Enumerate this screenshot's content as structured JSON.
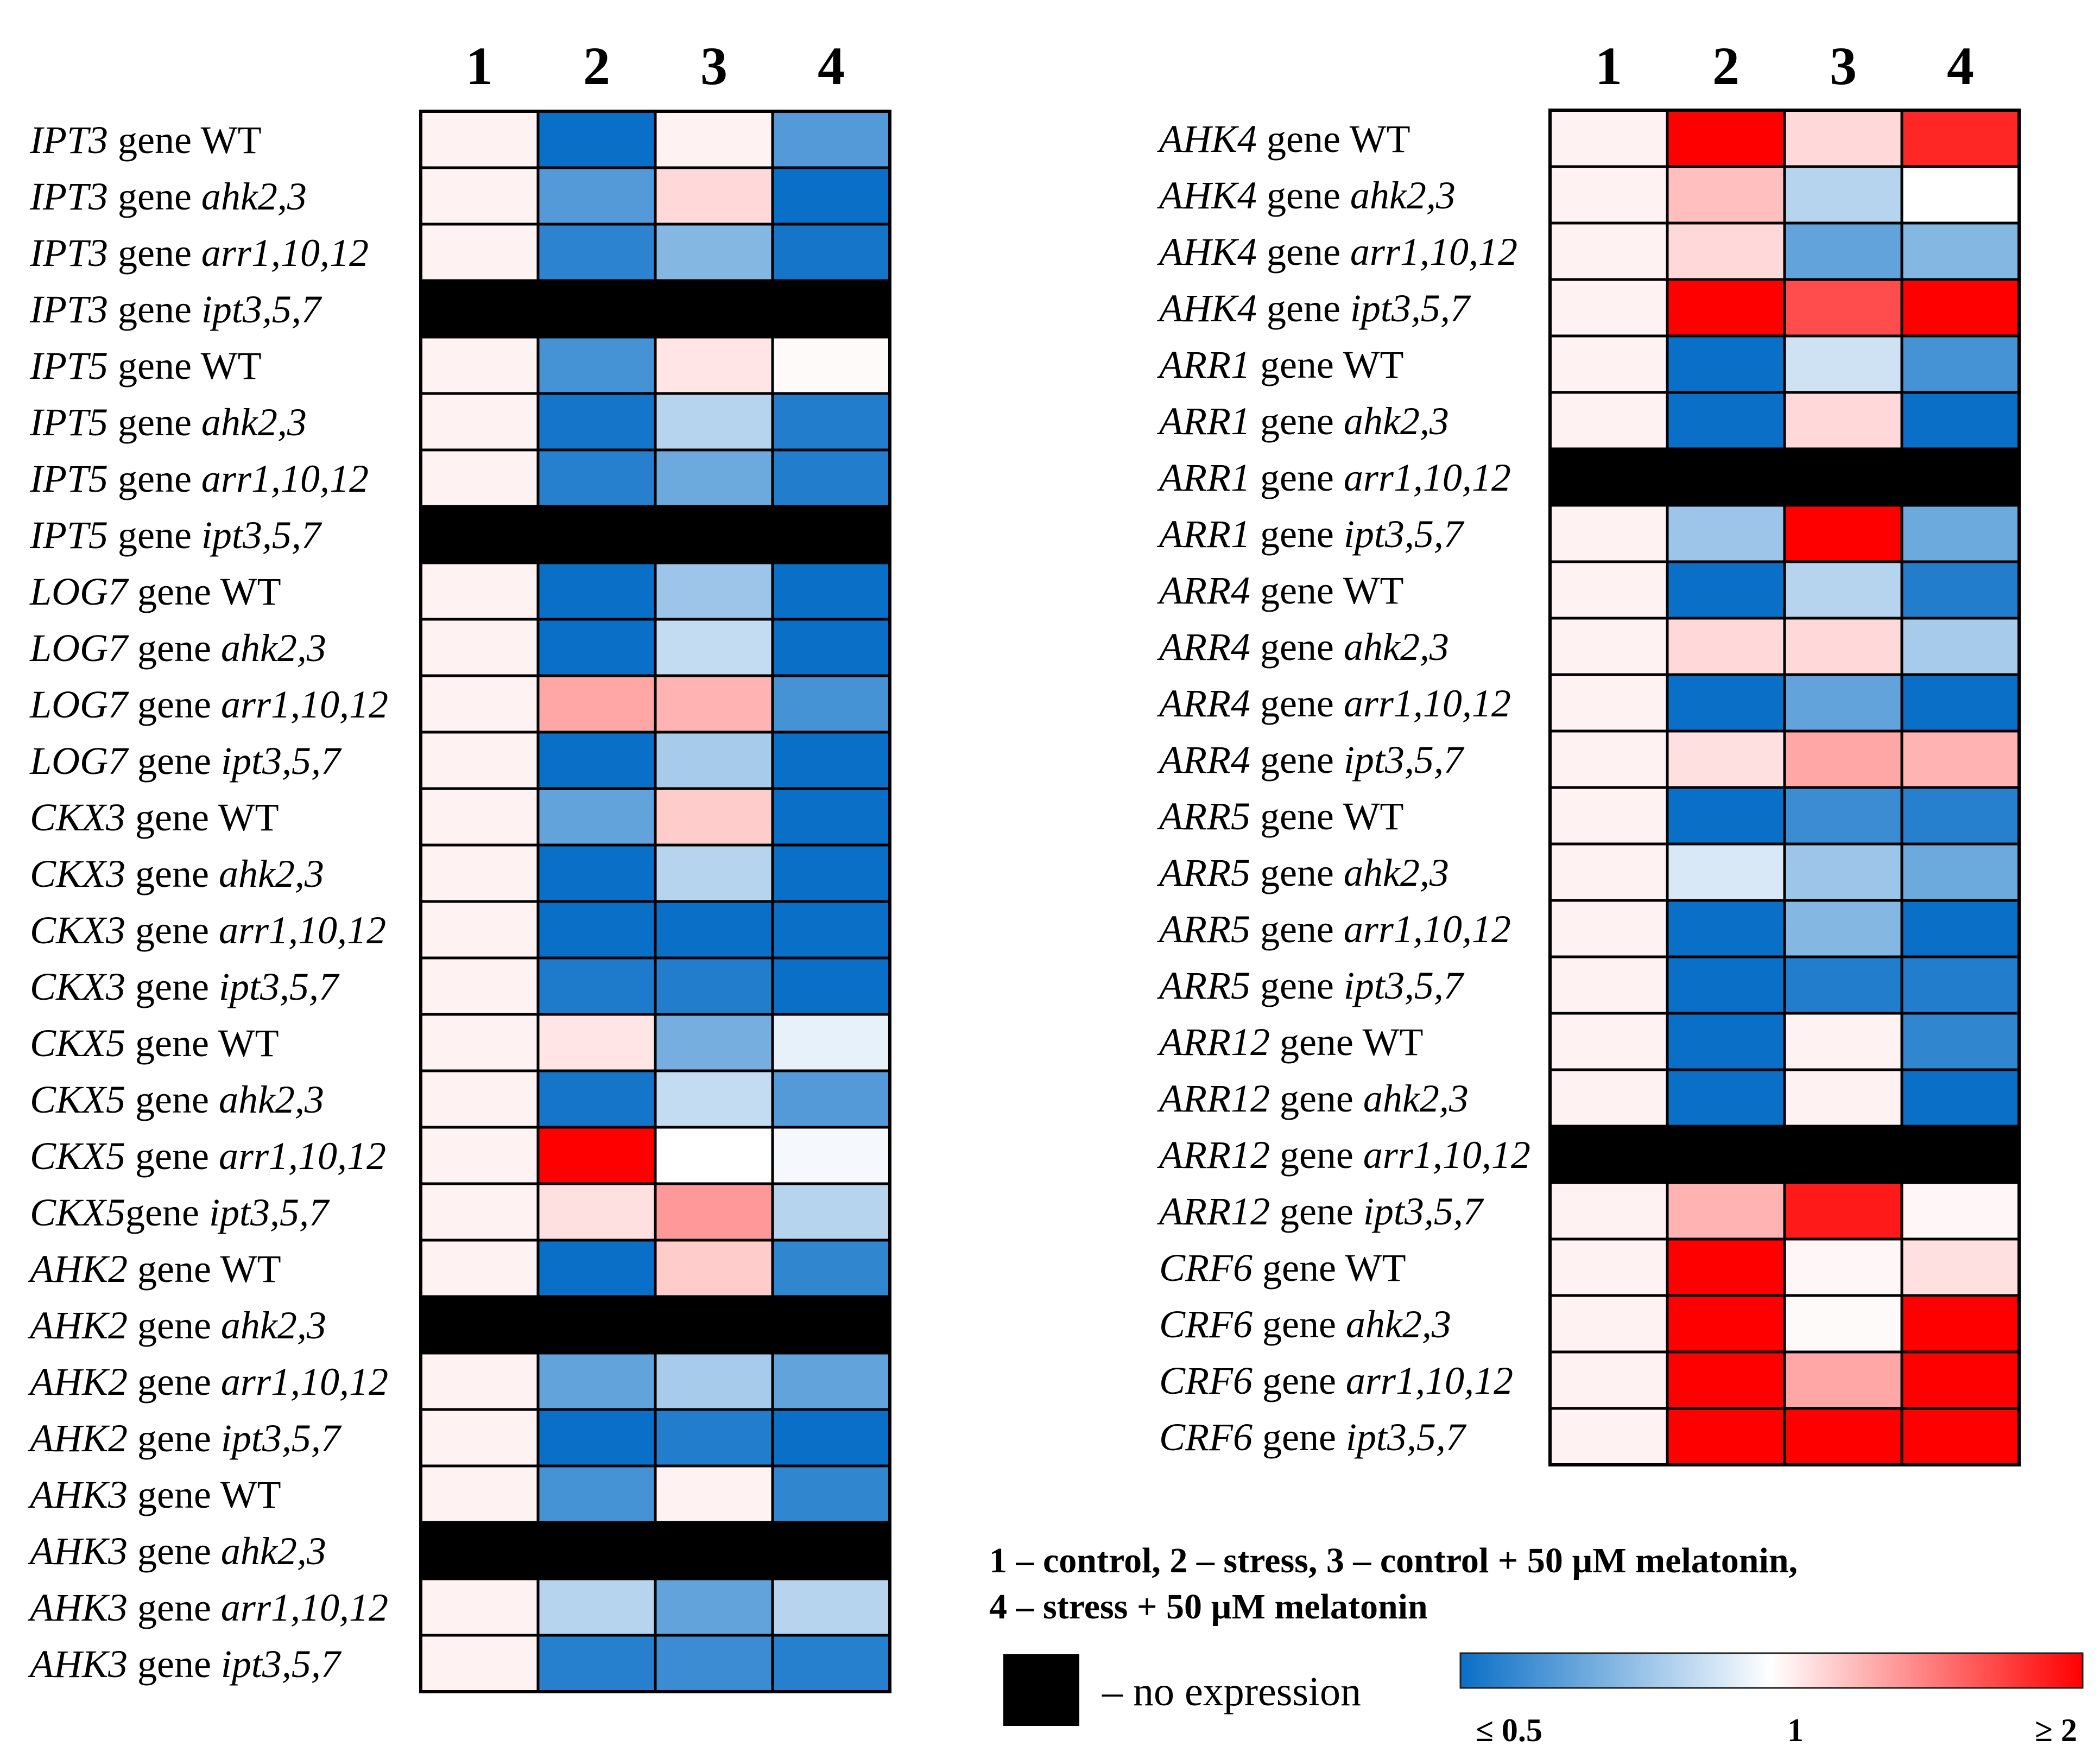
{
  "chart_data": {
    "type": "heatmap",
    "columns": [
      "1",
      "2",
      "3",
      "4"
    ],
    "legend_lines": [
      "1 – control, 2 – stress, 3 –  control + 50 µM melatonin,",
      "4 –  stress + 50 µM melatonin"
    ],
    "no_expression_label": "– no expression",
    "scale": {
      "min_label": "≤ 0.5",
      "mid_label": "1",
      "max_label": "≥ 2",
      "min": 0.5,
      "mid": 1,
      "max": 2,
      "low_color": "#0a6fc7",
      "mid_color": "#ffffff",
      "high_color": "#ff0000"
    },
    "no_expression_color": "#000000",
    "panels": [
      {
        "name": "left",
        "rows": [
          {
            "gene": "IPT3",
            "sep": " ",
            "suffix": "gene",
            "line": "WT",
            "line_italic": false,
            "values": [
              1.05,
              0.5,
              1.05,
              0.65
            ]
          },
          {
            "gene": "IPT3",
            "sep": " ",
            "suffix": "gene",
            "line": "ahk2,3",
            "line_italic": true,
            "values": [
              1.05,
              0.65,
              1.15,
              0.5
            ]
          },
          {
            "gene": "IPT3",
            "sep": " ",
            "suffix": "gene",
            "line": "arr1,10,12",
            "line_italic": true,
            "values": [
              1.05,
              0.57,
              0.75,
              0.52
            ]
          },
          {
            "gene": "IPT3",
            "sep": " ",
            "suffix": "gene",
            "line": "ipt3,5,7",
            "line_italic": true,
            "values": [
              null,
              null,
              null,
              null
            ]
          },
          {
            "gene": "IPT5",
            "sep": " ",
            "suffix": "gene",
            "line": "WT",
            "line_italic": false,
            "values": [
              1.05,
              0.62,
              1.1,
              1.02
            ]
          },
          {
            "gene": "IPT5",
            "sep": " ",
            "suffix": "gene",
            "line": "ahk2,3",
            "line_italic": true,
            "values": [
              1.05,
              0.52,
              0.85,
              0.55
            ]
          },
          {
            "gene": "IPT5",
            "sep": " ",
            "suffix": "gene",
            "line": "arr1,10,12",
            "line_italic": true,
            "values": [
              1.05,
              0.56,
              0.7,
              0.55
            ]
          },
          {
            "gene": "IPT5",
            "sep": " ",
            "suffix": "gene",
            "line": "ipt3,5,7",
            "line_italic": true,
            "values": [
              null,
              null,
              null,
              null
            ]
          },
          {
            "gene": "LOG7",
            "sep": " ",
            "suffix": "gene",
            "line": "WT",
            "line_italic": false,
            "values": [
              1.05,
              0.5,
              0.8,
              0.5
            ]
          },
          {
            "gene": "LOG7",
            "sep": " ",
            "suffix": "gene",
            "line": "ahk2,3",
            "line_italic": true,
            "values": [
              1.05,
              0.5,
              0.88,
              0.5
            ]
          },
          {
            "gene": "LOG7",
            "sep": " ",
            "suffix": "gene",
            "line": "arr1,10,12",
            "line_italic": true,
            "values": [
              1.05,
              1.35,
              1.3,
              0.62
            ]
          },
          {
            "gene": "LOG7",
            "sep": " ",
            "suffix": "gene",
            "line": "ipt3,5,7",
            "line_italic": true,
            "values": [
              1.05,
              0.5,
              0.82,
              0.5
            ]
          },
          {
            "gene": "CKX3",
            "sep": " ",
            "suffix": "gene",
            "line": "WT",
            "line_italic": false,
            "values": [
              1.05,
              0.68,
              1.2,
              0.5
            ]
          },
          {
            "gene": "CKX3",
            "sep": " ",
            "suffix": "gene",
            "line": "ahk2,3",
            "line_italic": true,
            "values": [
              1.05,
              0.5,
              0.85,
              0.5
            ]
          },
          {
            "gene": "CKX3",
            "sep": " ",
            "suffix": "gene",
            "line": "arr1,10,12",
            "line_italic": true,
            "values": [
              1.05,
              0.5,
              0.5,
              0.5
            ]
          },
          {
            "gene": "CKX3",
            "sep": " ",
            "suffix": "gene",
            "line": "ipt3,5,7",
            "line_italic": true,
            "values": [
              1.05,
              0.54,
              0.55,
              0.5
            ]
          },
          {
            "gene": "CKX5",
            "sep": " ",
            "suffix": "gene",
            "line": "WT",
            "line_italic": false,
            "values": [
              1.05,
              1.1,
              0.72,
              0.95
            ]
          },
          {
            "gene": "CKX5",
            "sep": " ",
            "suffix": "gene",
            "line": "ahk2,3",
            "line_italic": true,
            "values": [
              1.05,
              0.52,
              0.88,
              0.65
            ]
          },
          {
            "gene": "CKX5",
            "sep": " ",
            "suffix": "gene",
            "line": "arr1,10,12",
            "line_italic": true,
            "values": [
              1.05,
              2.0,
              1.0,
              0.98
            ]
          },
          {
            "gene": "CKX5",
            "sep": "",
            "suffix": "gene",
            "line": "ipt3,5,7",
            "line_italic": true,
            "values": [
              1.05,
              1.12,
              1.4,
              0.85
            ]
          },
          {
            "gene": "AHK2",
            "sep": " ",
            "suffix": "gene",
            "line": "WT",
            "line_italic": false,
            "values": [
              1.05,
              0.5,
              1.2,
              0.58
            ]
          },
          {
            "gene": "AHK2",
            "sep": " ",
            "suffix": "gene",
            "line": "ahk2,3",
            "line_italic": true,
            "values": [
              null,
              null,
              null,
              null
            ]
          },
          {
            "gene": "AHK2",
            "sep": " ",
            "suffix": "gene",
            "line": "arr1,10,12",
            "line_italic": true,
            "values": [
              1.05,
              0.68,
              0.82,
              0.68
            ]
          },
          {
            "gene": "AHK2",
            "sep": " ",
            "suffix": "gene",
            "line": "ipt3,5,7",
            "line_italic": true,
            "values": [
              1.05,
              0.5,
              0.55,
              0.5
            ]
          },
          {
            "gene": "AHK3",
            "sep": " ",
            "suffix": "gene",
            "line": "WT",
            "line_italic": false,
            "values": [
              1.05,
              0.62,
              1.05,
              0.58
            ]
          },
          {
            "gene": "AHK3",
            "sep": " ",
            "suffix": "gene",
            "line": "ahk2,3",
            "line_italic": true,
            "values": [
              null,
              null,
              null,
              null
            ]
          },
          {
            "gene": "AHK3",
            "sep": " ",
            "suffix": "gene",
            "line": "arr1,10,12",
            "line_italic": true,
            "values": [
              1.05,
              0.85,
              0.68,
              0.85
            ]
          },
          {
            "gene": "AHK3",
            "sep": " ",
            "suffix": "gene",
            "line": "ipt3,5,7",
            "line_italic": true,
            "values": [
              1.05,
              0.56,
              0.6,
              0.56
            ]
          }
        ]
      },
      {
        "name": "right",
        "rows": [
          {
            "gene": "AHK4",
            "sep": " ",
            "suffix": "gene",
            "line": "WT",
            "line_italic": false,
            "values": [
              1.05,
              2.0,
              1.15,
              1.85
            ]
          },
          {
            "gene": "AHK4",
            "sep": " ",
            "suffix": "gene",
            "line": "ahk2,3",
            "line_italic": true,
            "values": [
              1.05,
              1.25,
              0.85,
              1.0
            ]
          },
          {
            "gene": "AHK4",
            "sep": " ",
            "suffix": "gene",
            "line": "arr1,10,12",
            "line_italic": true,
            "values": [
              1.05,
              1.15,
              0.68,
              0.75
            ]
          },
          {
            "gene": "AHK4",
            "sep": " ",
            "suffix": "gene",
            "line": "ipt3,5,7",
            "line_italic": true,
            "values": [
              1.05,
              2.0,
              1.7,
              2.0
            ]
          },
          {
            "gene": "ARR1",
            "sep": " ",
            "suffix": "gene",
            "line": "WT",
            "line_italic": false,
            "values": [
              1.05,
              0.5,
              0.9,
              0.62
            ]
          },
          {
            "gene": "ARR1",
            "sep": " ",
            "suffix": "gene",
            "line": "ahk2,3",
            "line_italic": true,
            "values": [
              1.05,
              0.5,
              1.15,
              0.5
            ]
          },
          {
            "gene": "ARR1",
            "sep": " ",
            "suffix": "gene",
            "line": "arr1,10,12",
            "line_italic": true,
            "values": [
              null,
              null,
              null,
              null
            ]
          },
          {
            "gene": "ARR1",
            "sep": " ",
            "suffix": "gene",
            "line": "ipt3,5,7",
            "line_italic": true,
            "values": [
              1.05,
              0.8,
              2.0,
              0.7
            ]
          },
          {
            "gene": "ARR4",
            "sep": " ",
            "suffix": "gene",
            "line": "WT",
            "line_italic": false,
            "values": [
              1.05,
              0.5,
              0.85,
              0.55
            ]
          },
          {
            "gene": "ARR4",
            "sep": " ",
            "suffix": "gene",
            "line": "ahk2,3",
            "line_italic": true,
            "values": [
              1.05,
              1.15,
              1.15,
              0.82
            ]
          },
          {
            "gene": "ARR4",
            "sep": " ",
            "suffix": "gene",
            "line": "arr1,10,12",
            "line_italic": true,
            "values": [
              1.05,
              0.5,
              0.68,
              0.5
            ]
          },
          {
            "gene": "ARR4",
            "sep": " ",
            "suffix": "gene",
            "line": "ipt3,5,7",
            "line_italic": true,
            "values": [
              1.05,
              1.12,
              1.35,
              1.3
            ]
          },
          {
            "gene": "ARR5",
            "sep": " ",
            "suffix": "gene",
            "line": "WT",
            "line_italic": false,
            "values": [
              1.05,
              0.5,
              0.6,
              0.56
            ]
          },
          {
            "gene": "ARR5",
            "sep": " ",
            "suffix": "gene",
            "line": "ahk2,3",
            "line_italic": true,
            "values": [
              1.05,
              0.92,
              0.8,
              0.7
            ]
          },
          {
            "gene": "ARR5",
            "sep": " ",
            "suffix": "gene",
            "line": "arr1,10,12",
            "line_italic": true,
            "values": [
              1.05,
              0.5,
              0.75,
              0.5
            ]
          },
          {
            "gene": "ARR5",
            "sep": " ",
            "suffix": "gene",
            "line": "ipt3,5,7",
            "line_italic": true,
            "values": [
              1.05,
              0.5,
              0.55,
              0.55
            ]
          },
          {
            "gene": "ARR12",
            "sep": " ",
            "suffix": "gene",
            "line": "WT",
            "line_italic": false,
            "values": [
              1.05,
              0.5,
              1.05,
              0.58
            ]
          },
          {
            "gene": "ARR12",
            "sep": " ",
            "suffix": "gene",
            "line": "ahk2,3",
            "line_italic": true,
            "values": [
              1.05,
              0.5,
              1.05,
              0.5
            ]
          },
          {
            "gene": "ARR12",
            "sep": " ",
            "suffix": "gene",
            "line": "arr1,10,12",
            "line_italic": true,
            "values": [
              null,
              null,
              null,
              null
            ]
          },
          {
            "gene": "ARR12",
            "sep": " ",
            "suffix": "gene",
            "line": "ipt3,5,7",
            "line_italic": true,
            "values": [
              1.05,
              1.3,
              1.9,
              1.03
            ]
          },
          {
            "gene": "CRF6",
            "sep": " ",
            "suffix": "gene",
            "line": "WT",
            "line_italic": false,
            "values": [
              1.05,
              2.0,
              1.03,
              1.12
            ]
          },
          {
            "gene": "CRF6",
            "sep": " ",
            "suffix": "gene",
            "line": "ahk2,3",
            "line_italic": true,
            "values": [
              1.05,
              2.0,
              1.02,
              2.0
            ]
          },
          {
            "gene": "CRF6",
            "sep": " ",
            "suffix": "gene",
            "line": "arr1,10,12",
            "line_italic": true,
            "values": [
              1.05,
              2.0,
              1.35,
              2.0
            ]
          },
          {
            "gene": "CRF6",
            "sep": " ",
            "suffix": "gene",
            "line": "ipt3,5,7",
            "line_italic": true,
            "values": [
              1.05,
              2.0,
              2.0,
              2.0
            ]
          }
        ]
      }
    ]
  }
}
